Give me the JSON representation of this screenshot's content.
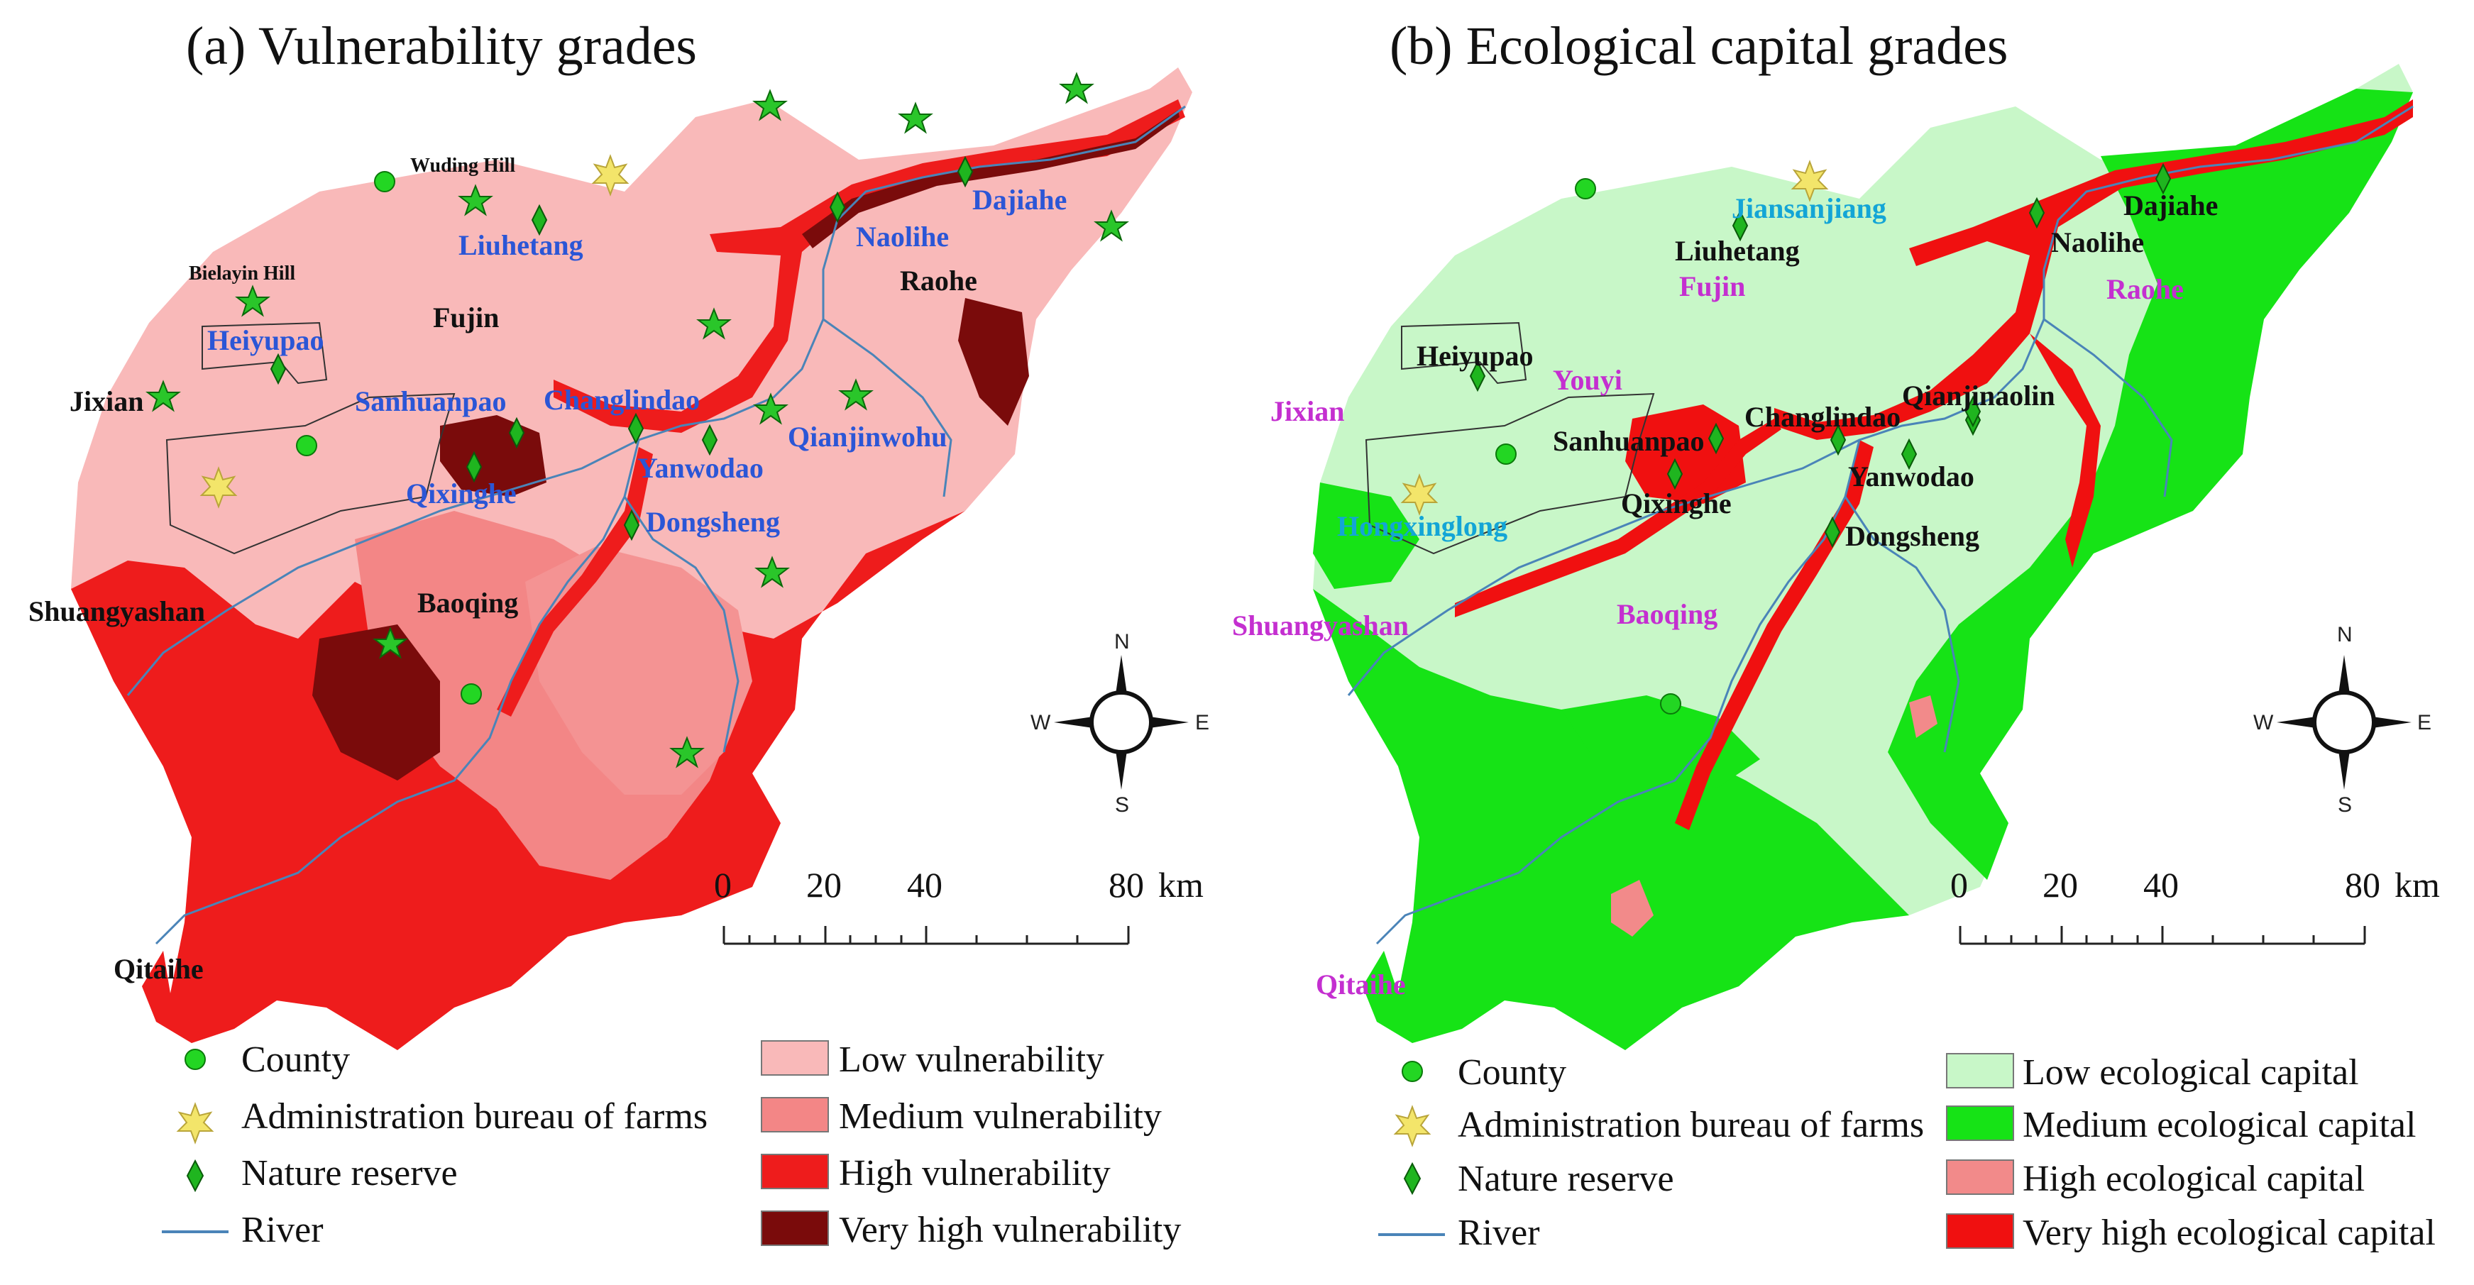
{
  "panel_a": {
    "title": "(a) Vulnerability grades",
    "place_labels": {
      "wuding_hill": "Wuding Hill",
      "bielayin_hill": "Bielayin Hill",
      "liuhetang": "Liuhetang",
      "naolihe": "Naolihe",
      "dajiahe": "Dajiahe",
      "raohe": "Raohe",
      "fujin": "Fujin",
      "heiyupao": "Heiyupao",
      "jixian": "Jixian",
      "sanhuanpao": "Sanhuanpao",
      "changlindao": "Changlindao",
      "qianjinwohu": "Qianjinwohu",
      "yanwodao": "Yanwodao",
      "qixinghe": "Qixinghe",
      "dongsheng": "Dongsheng",
      "baoqing": "Baoqing",
      "shuangyashan": "Shuangyashan",
      "qitaihe": "Qitaihe"
    },
    "legend": {
      "county": "County",
      "admin_bureau": "Administration bureau of farms",
      "nature_reserve": "Nature reserve",
      "river": "River",
      "low": "Low vulnerability",
      "medium": "Medium vulnerability",
      "high": "High vulnerability",
      "very_high": "Very high vulnerability"
    },
    "colors": {
      "low": "#f9b9b9",
      "medium": "#f38686",
      "high": "#ee1c1c",
      "very_high": "#7a0b0b"
    }
  },
  "panel_b": {
    "title": "(b)  Ecological capital grades",
    "place_labels": {
      "jiansanjiang": "Jiansanjiang",
      "liuhetang": "Liuhetang",
      "fujin": "Fujin",
      "dajiahe": "Dajiahe",
      "naolihe": "Naolihe",
      "raohe": "Raohe",
      "heiyupao": "Heiyupao",
      "youyi": "Youyi",
      "jixian": "Jixian",
      "qianjinaolin": "Qianjinaolin",
      "changlindao": "Changlindao",
      "sanhuanpao": "Sanhuanpao",
      "yanwodao": "Yanwodao",
      "qixinghe": "Qixinghe",
      "dongsheng": "Dongsheng",
      "hongxinglong": "Hongxinglong",
      "shuangyashan": "Shuangyashan",
      "baoqing": "Baoqing",
      "qitaihe": "Qitaihe"
    },
    "legend": {
      "county": "County",
      "admin_bureau": "Administration bureau of farms",
      "nature_reserve": "Nature reserve",
      "river": "River",
      "low": "Low ecological capital",
      "medium": "Medium ecological capital",
      "high": "High ecological capital",
      "very_high": "Very high ecological capital"
    },
    "colors": {
      "low": "#c8f7c8",
      "medium": "#16e316",
      "high": "#f28a8a",
      "very_high": "#f01010"
    }
  },
  "scale": {
    "ticks": [
      "0",
      "20",
      "40",
      "80"
    ],
    "unit": "km"
  },
  "compass": {
    "n": "N",
    "s": "S",
    "e": "E",
    "w": "W"
  },
  "marker_colors": {
    "county": "#23d623",
    "reserve": "#2ab52a",
    "admin": "#f3e56a",
    "river": "#4a84b8"
  }
}
